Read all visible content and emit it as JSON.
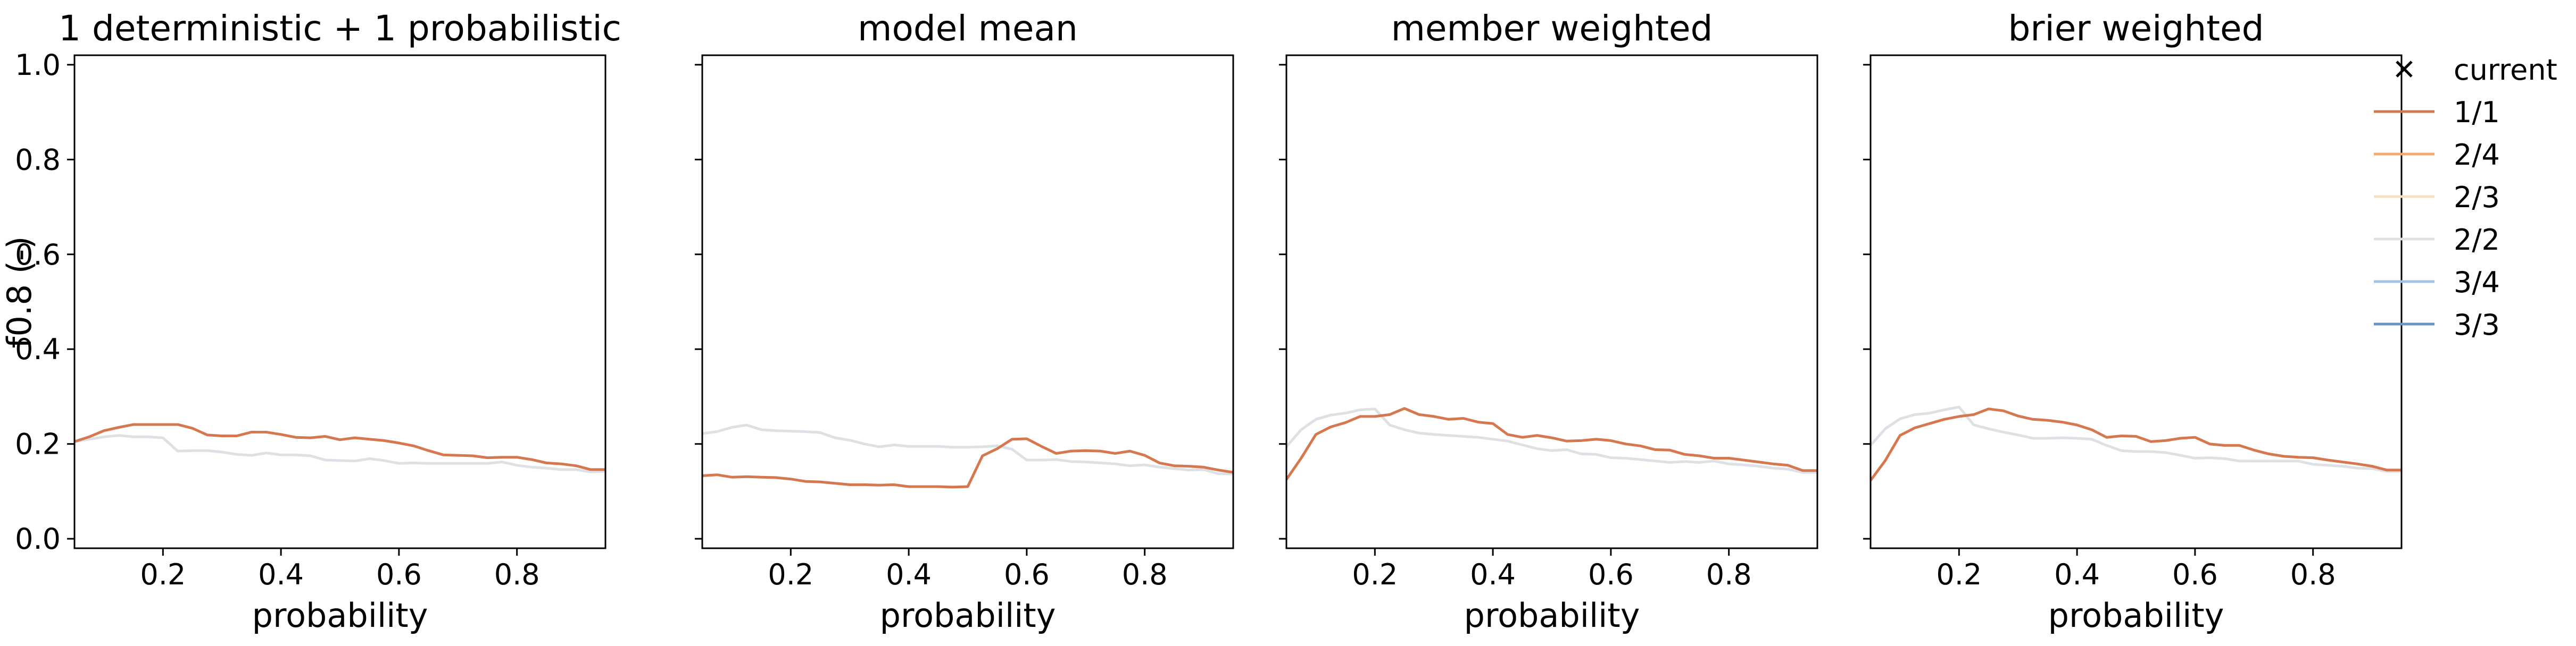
{
  "figure": {
    "ylabel": "f0.8 (-)"
  },
  "chart_data": [
    {
      "type": "line",
      "title": "1 deterministic + 1 probabilistic",
      "xlabel": "probability",
      "ylabel": "f0.8 (-)",
      "xlim": [
        0.05,
        0.95
      ],
      "ylim": [
        -0.02,
        1.02
      ],
      "xticks": [
        "0.2",
        "0.4",
        "0.6",
        "0.8"
      ],
      "yticks": [
        "0.0",
        "0.2",
        "0.4",
        "0.6",
        "0.8",
        "1.0"
      ],
      "x": [
        0.05,
        0.075,
        0.1,
        0.125,
        0.15,
        0.175,
        0.2,
        0.225,
        0.25,
        0.275,
        0.3,
        0.325,
        0.35,
        0.375,
        0.4,
        0.425,
        0.45,
        0.475,
        0.5,
        0.525,
        0.55,
        0.575,
        0.6,
        0.625,
        0.65,
        0.675,
        0.7,
        0.725,
        0.75,
        0.775,
        0.8,
        0.825,
        0.85,
        0.875,
        0.9,
        0.925,
        0.95
      ],
      "series": [
        {
          "name": "1/1",
          "values": [
            0.205,
            0.215,
            0.228,
            0.235,
            0.241,
            0.241,
            0.241,
            0.241,
            0.233,
            0.219,
            0.217,
            0.217,
            0.225,
            0.225,
            0.22,
            0.214,
            0.213,
            0.216,
            0.209,
            0.213,
            0.21,
            0.207,
            0.202,
            0.196,
            0.186,
            0.177,
            0.176,
            0.175,
            0.171,
            0.172,
            0.172,
            0.167,
            0.16,
            0.158,
            0.154,
            0.146,
            0.146
          ]
        },
        {
          "name": "2/2",
          "values": [
            0.205,
            0.21,
            0.215,
            0.218,
            0.215,
            0.215,
            0.213,
            0.185,
            0.186,
            0.186,
            0.183,
            0.178,
            0.176,
            0.181,
            0.177,
            0.177,
            0.175,
            0.166,
            0.165,
            0.164,
            0.169,
            0.165,
            0.159,
            0.16,
            0.159,
            0.159,
            0.159,
            0.159,
            0.159,
            0.162,
            0.155,
            0.151,
            0.149,
            0.146,
            0.146,
            0.141,
            0.142
          ]
        }
      ]
    },
    {
      "type": "line",
      "title": "model mean",
      "xlabel": "probability",
      "ylabel": "",
      "xlim": [
        0.05,
        0.95
      ],
      "ylim": [
        -0.02,
        1.02
      ],
      "xticks": [
        "0.2",
        "0.4",
        "0.6",
        "0.8"
      ],
      "yticks": [
        "",
        "",
        "",
        "",
        "",
        ""
      ],
      "x": [
        0.05,
        0.075,
        0.1,
        0.125,
        0.15,
        0.175,
        0.2,
        0.225,
        0.25,
        0.275,
        0.3,
        0.325,
        0.35,
        0.375,
        0.4,
        0.425,
        0.45,
        0.475,
        0.5,
        0.525,
        0.55,
        0.575,
        0.6,
        0.625,
        0.65,
        0.675,
        0.7,
        0.725,
        0.75,
        0.775,
        0.8,
        0.825,
        0.85,
        0.875,
        0.9,
        0.925,
        0.95
      ],
      "series": [
        {
          "name": "1/1",
          "values": [
            0.133,
            0.135,
            0.13,
            0.131,
            0.13,
            0.129,
            0.126,
            0.121,
            0.12,
            0.117,
            0.114,
            0.114,
            0.113,
            0.114,
            0.11,
            0.11,
            0.11,
            0.109,
            0.11,
            0.175,
            0.19,
            0.21,
            0.211,
            0.195,
            0.18,
            0.185,
            0.186,
            0.185,
            0.18,
            0.185,
            0.176,
            0.16,
            0.154,
            0.153,
            0.151,
            0.145,
            0.14
          ]
        },
        {
          "name": "2/2",
          "values": [
            0.222,
            0.226,
            0.235,
            0.24,
            0.23,
            0.228,
            0.227,
            0.226,
            0.224,
            0.213,
            0.208,
            0.2,
            0.194,
            0.198,
            0.195,
            0.195,
            0.195,
            0.193,
            0.193,
            0.194,
            0.196,
            0.189,
            0.166,
            0.166,
            0.167,
            0.163,
            0.162,
            0.16,
            0.158,
            0.154,
            0.156,
            0.151,
            0.148,
            0.145,
            0.146,
            0.137,
            0.137
          ]
        }
      ]
    },
    {
      "type": "line",
      "title": "member weighted",
      "xlabel": "probability",
      "ylabel": "",
      "xlim": [
        0.05,
        0.95
      ],
      "ylim": [
        -0.02,
        1.02
      ],
      "xticks": [
        "0.2",
        "0.4",
        "0.6",
        "0.8"
      ],
      "yticks": [
        "",
        "",
        "",
        "",
        "",
        ""
      ],
      "x": [
        0.05,
        0.075,
        0.1,
        0.125,
        0.15,
        0.175,
        0.2,
        0.225,
        0.25,
        0.275,
        0.3,
        0.325,
        0.35,
        0.375,
        0.4,
        0.425,
        0.45,
        0.475,
        0.5,
        0.525,
        0.55,
        0.575,
        0.6,
        0.625,
        0.65,
        0.675,
        0.7,
        0.725,
        0.75,
        0.775,
        0.8,
        0.825,
        0.85,
        0.875,
        0.9,
        0.925,
        0.95
      ],
      "series": [
        {
          "name": "1/1",
          "values": [
            0.125,
            0.17,
            0.22,
            0.236,
            0.245,
            0.258,
            0.258,
            0.262,
            0.275,
            0.262,
            0.258,
            0.252,
            0.254,
            0.246,
            0.243,
            0.22,
            0.214,
            0.218,
            0.213,
            0.206,
            0.207,
            0.21,
            0.207,
            0.2,
            0.196,
            0.188,
            0.187,
            0.178,
            0.175,
            0.17,
            0.17,
            0.166,
            0.162,
            0.158,
            0.155,
            0.144,
            0.144
          ]
        },
        {
          "name": "2/2",
          "values": [
            0.194,
            0.23,
            0.252,
            0.261,
            0.265,
            0.272,
            0.274,
            0.24,
            0.23,
            0.223,
            0.22,
            0.218,
            0.216,
            0.214,
            0.21,
            0.206,
            0.198,
            0.19,
            0.186,
            0.188,
            0.179,
            0.178,
            0.171,
            0.17,
            0.167,
            0.164,
            0.161,
            0.163,
            0.161,
            0.164,
            0.158,
            0.156,
            0.153,
            0.149,
            0.147,
            0.14,
            0.14
          ]
        }
      ]
    },
    {
      "type": "line",
      "title": "brier weighted",
      "xlabel": "probability",
      "ylabel": "",
      "xlim": [
        0.05,
        0.95
      ],
      "ylim": [
        -0.02,
        1.02
      ],
      "xticks": [
        "0.2",
        "0.4",
        "0.6",
        "0.8"
      ],
      "yticks": [
        "",
        "",
        "",
        "",
        "",
        ""
      ],
      "x": [
        0.05,
        0.075,
        0.1,
        0.125,
        0.15,
        0.175,
        0.2,
        0.225,
        0.25,
        0.275,
        0.3,
        0.325,
        0.35,
        0.375,
        0.4,
        0.425,
        0.45,
        0.475,
        0.5,
        0.525,
        0.55,
        0.575,
        0.6,
        0.625,
        0.65,
        0.675,
        0.7,
        0.725,
        0.75,
        0.775,
        0.8,
        0.825,
        0.85,
        0.875,
        0.9,
        0.925,
        0.95
      ],
      "series": [
        {
          "name": "1/1",
          "values": [
            0.123,
            0.165,
            0.218,
            0.234,
            0.243,
            0.252,
            0.258,
            0.262,
            0.274,
            0.27,
            0.259,
            0.252,
            0.25,
            0.246,
            0.24,
            0.23,
            0.214,
            0.217,
            0.216,
            0.205,
            0.207,
            0.212,
            0.214,
            0.2,
            0.197,
            0.197,
            0.187,
            0.179,
            0.174,
            0.172,
            0.171,
            0.166,
            0.162,
            0.158,
            0.153,
            0.145,
            0.145
          ]
        },
        {
          "name": "2/2",
          "values": [
            0.197,
            0.232,
            0.253,
            0.262,
            0.265,
            0.272,
            0.278,
            0.24,
            0.232,
            0.225,
            0.219,
            0.212,
            0.212,
            0.213,
            0.212,
            0.21,
            0.197,
            0.186,
            0.184,
            0.184,
            0.182,
            0.176,
            0.17,
            0.171,
            0.169,
            0.164,
            0.164,
            0.164,
            0.164,
            0.164,
            0.157,
            0.155,
            0.153,
            0.149,
            0.148,
            0.142,
            0.142
          ]
        }
      ]
    }
  ],
  "legend": {
    "placement": "right",
    "items": [
      {
        "label": "current",
        "marker": "x",
        "color": "#000000"
      },
      {
        "label": "1/1",
        "color": "#d6784f"
      },
      {
        "label": "2/4",
        "color": "#f0a96e"
      },
      {
        "label": "2/3",
        "color": "#f6e0bf"
      },
      {
        "label": "2/2",
        "color": "#dde1e6"
      },
      {
        "label": "3/4",
        "color": "#9fc3e2"
      },
      {
        "label": "3/3",
        "color": "#6a94c6"
      }
    ]
  },
  "colors": {
    "series_1_1": "#d6784f",
    "series_2_2": "#dcdcdc"
  }
}
